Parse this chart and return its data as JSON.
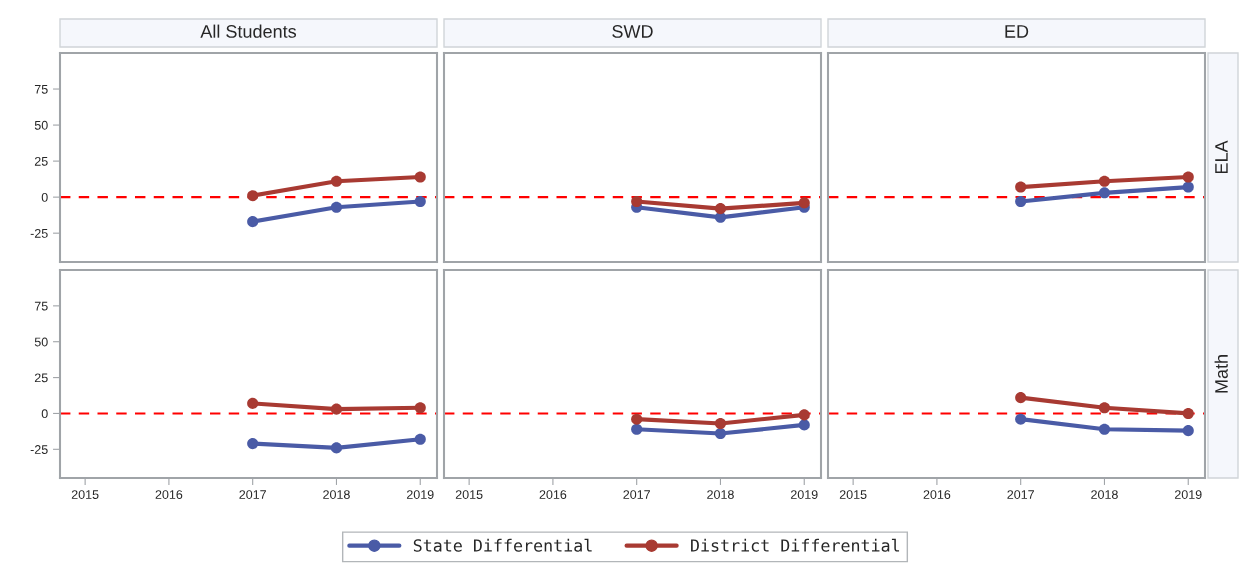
{
  "chart_data": [
    {
      "type": "line",
      "title": "All Students",
      "x": [
        2017,
        2018,
        2019
      ],
      "xlim": [
        2014.7,
        2019.2
      ],
      "xticks": [
        2015,
        2016,
        2017,
        2018,
        2019
      ],
      "ylim": [
        -45,
        100
      ],
      "yticks": [
        -25,
        0,
        25,
        50,
        75
      ],
      "tick_labels": "y",
      "marker": "circle",
      "line_style": "solid",
      "grid": false,
      "legend": "bottom",
      "series": [
        {
          "name": "State Differential",
          "color": "#4a5ba6",
          "values": [
            -17,
            -7,
            -3
          ]
        },
        {
          "name": "District Differential",
          "color": "#a83a32",
          "values": [
            1,
            11,
            14
          ]
        }
      ],
      "ref_lines": [
        {
          "axis": "y",
          "value": 0,
          "color": "#ff0000",
          "line_style": "dashed"
        }
      ]
    },
    {
      "type": "line",
      "title": "SWD",
      "x": [
        2017,
        2018,
        2019
      ],
      "xlim": [
        2014.7,
        2019.2
      ],
      "xticks": [
        2015,
        2016,
        2017,
        2018,
        2019
      ],
      "ylim": [
        -45,
        100
      ],
      "yticks": [
        -25,
        0,
        25,
        50,
        75
      ],
      "tick_labels": false,
      "marker": "circle",
      "line_style": "solid",
      "grid": false,
      "series": [
        {
          "color": "#4a5ba6",
          "values": [
            -7,
            -14,
            -7
          ]
        },
        {
          "color": "#a83a32",
          "values": [
            -3,
            -8,
            -4
          ]
        }
      ],
      "ref_lines": [
        {
          "axis": "y",
          "value": 0,
          "color": "#ff0000",
          "line_style": "dashed"
        }
      ]
    },
    {
      "type": "line",
      "title": "ED",
      "annotations": [
        "ELA"
      ],
      "x": [
        2017,
        2018,
        2019
      ],
      "xlim": [
        2014.7,
        2019.2
      ],
      "xticks": [
        2015,
        2016,
        2017,
        2018,
        2019
      ],
      "ylim": [
        -45,
        100
      ],
      "yticks": [
        -25,
        0,
        25,
        50,
        75
      ],
      "tick_labels": false,
      "marker": "circle",
      "line_style": "solid",
      "grid": false,
      "series": [
        {
          "color": "#4a5ba6",
          "values": [
            -3,
            3,
            7
          ]
        },
        {
          "color": "#a83a32",
          "values": [
            7,
            11,
            14
          ]
        }
      ],
      "ref_lines": [
        {
          "axis": "y",
          "value": 0,
          "color": "#ff0000",
          "line_style": "dashed"
        }
      ]
    },
    {
      "type": "line",
      "x": [
        2017,
        2018,
        2019
      ],
      "xlim": [
        2014.7,
        2019.2
      ],
      "xticks": [
        2015,
        2016,
        2017,
        2018,
        2019
      ],
      "ylim": [
        -45,
        100
      ],
      "yticks": [
        -25,
        0,
        25,
        50,
        75
      ],
      "marker": "circle",
      "line_style": "solid",
      "grid": false,
      "series": [
        {
          "color": "#4a5ba6",
          "values": [
            -21,
            -24,
            -18
          ]
        },
        {
          "color": "#a83a32",
          "values": [
            7,
            3,
            4
          ]
        }
      ],
      "ref_lines": [
        {
          "axis": "y",
          "value": 0,
          "color": "#ff0000",
          "line_style": "dashed"
        }
      ]
    },
    {
      "type": "line",
      "x": [
        2017,
        2018,
        2019
      ],
      "xlim": [
        2014.7,
        2019.2
      ],
      "xticks": [
        2015,
        2016,
        2017,
        2018,
        2019
      ],
      "ylim": [
        -45,
        100
      ],
      "yticks": [
        -25,
        0,
        25,
        50,
        75
      ],
      "tick_labels": "x",
      "marker": "circle",
      "line_style": "solid",
      "grid": false,
      "series": [
        {
          "color": "#4a5ba6",
          "values": [
            -11,
            -14,
            -8
          ]
        },
        {
          "color": "#a83a32",
          "values": [
            -4,
            -7,
            -1
          ]
        }
      ],
      "ref_lines": [
        {
          "axis": "y",
          "value": 0,
          "color": "#ff0000",
          "line_style": "dashed"
        }
      ]
    },
    {
      "type": "line",
      "annotations": [
        "Math"
      ],
      "x": [
        2017,
        2018,
        2019
      ],
      "xlim": [
        2014.7,
        2019.2
      ],
      "xticks": [
        2015,
        2016,
        2017,
        2018,
        2019
      ],
      "ylim": [
        -45,
        100
      ],
      "yticks": [
        -25,
        0,
        25,
        50,
        75
      ],
      "tick_labels": "x",
      "marker": "circle",
      "line_style": "solid",
      "grid": false,
      "series": [
        {
          "color": "#4a5ba6",
          "values": [
            -4,
            -11,
            -12
          ]
        },
        {
          "color": "#a83a32",
          "values": [
            11,
            4,
            0
          ]
        }
      ],
      "ref_lines": [
        {
          "axis": "y",
          "value": 0,
          "color": "#ff0000",
          "line_style": "dashed"
        }
      ]
    }
  ]
}
